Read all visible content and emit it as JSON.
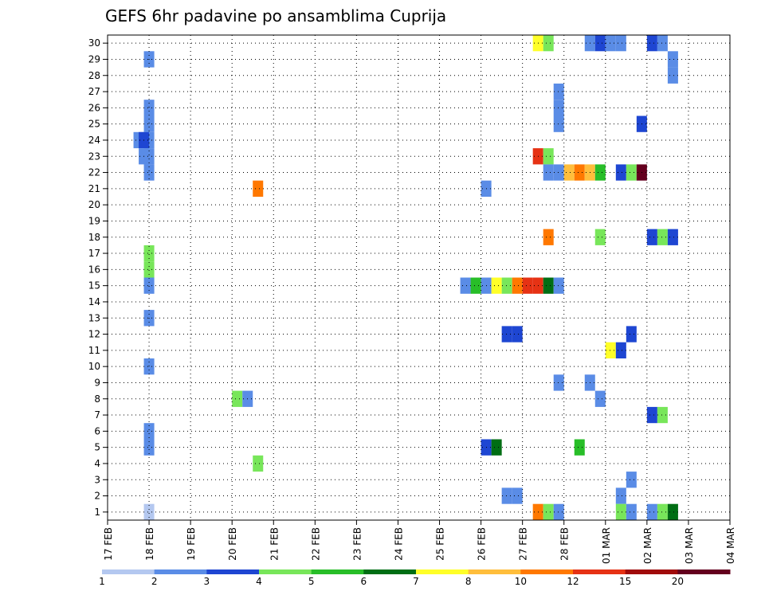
{
  "chart_data": {
    "type": "heatmap",
    "title": "GEFS 6hr padavine po ansamblima Cuprija",
    "xlabel": "",
    "ylabel": "",
    "y_ticks": [
      "1",
      "2",
      "3",
      "4",
      "5",
      "6",
      "7",
      "8",
      "9",
      "10",
      "11",
      "12",
      "13",
      "14",
      "15",
      "16",
      "17",
      "18",
      "19",
      "20",
      "21",
      "22",
      "23",
      "24",
      "25",
      "26",
      "27",
      "28",
      "29",
      "30"
    ],
    "x_ticks": [
      "17 FEB",
      "18 FEB",
      "19 FEB",
      "20 FEB",
      "21 FEB",
      "22 FEB",
      "23 FEB",
      "24 FEB",
      "25 FEB",
      "26 FEB",
      "27 FEB",
      "28 FEB",
      "01 MAR",
      "02 MAR",
      "03 MAR",
      "04 MAR"
    ],
    "x_range_days": [
      0,
      15
    ],
    "y_range": [
      0.5,
      30.5
    ],
    "grid": true,
    "legend_placement": "bottom",
    "levels": [
      "1",
      "2",
      "3",
      "4",
      "5",
      "6",
      "7",
      "8",
      "10",
      "12",
      "15",
      "20"
    ],
    "colors": [
      "#b4c8f0",
      "#5a8ce6",
      "#1e46d2",
      "#78e65a",
      "#28be28",
      "#006e14",
      "#ffff28",
      "#ffbe3c",
      "#ff7800",
      "#e63214",
      "#a00a0a",
      "#64001e"
    ],
    "cells": [
      [
        1.0,
        29,
        1
      ],
      [
        1.0,
        26,
        1
      ],
      [
        1.0,
        25,
        1
      ],
      [
        1.0,
        24,
        1
      ],
      [
        0.75,
        24,
        1
      ],
      [
        0.875,
        24,
        2
      ],
      [
        1.0,
        23,
        1
      ],
      [
        0.875,
        23,
        1
      ],
      [
        1.0,
        22,
        1
      ],
      [
        3.625,
        21,
        8
      ],
      [
        1.0,
        17,
        3
      ],
      [
        1.0,
        16,
        3
      ],
      [
        1.0,
        15,
        1
      ],
      [
        1.0,
        13,
        1
      ],
      [
        1.0,
        10,
        1
      ],
      [
        3.125,
        8,
        3
      ],
      [
        3.375,
        8,
        1
      ],
      [
        3.625,
        4,
        3
      ],
      [
        1.0,
        6,
        1
      ],
      [
        1.0,
        5,
        1
      ],
      [
        1.0,
        1,
        0
      ],
      [
        9.125,
        21,
        1
      ],
      [
        9.125,
        5,
        2
      ],
      [
        9.375,
        5,
        5
      ],
      [
        9.625,
        12,
        2
      ],
      [
        9.875,
        12,
        2
      ],
      [
        9.625,
        2,
        1
      ],
      [
        9.875,
        2,
        1
      ],
      [
        8.625,
        15,
        1
      ],
      [
        8.875,
        15,
        4
      ],
      [
        9.125,
        15,
        1
      ],
      [
        9.375,
        15,
        6
      ],
      [
        9.625,
        15,
        3
      ],
      [
        9.875,
        15,
        8
      ],
      [
        10.125,
        15,
        9
      ],
      [
        10.375,
        15,
        9
      ],
      [
        10.625,
        15,
        5
      ],
      [
        10.875,
        15,
        1
      ],
      [
        10.375,
        30,
        6
      ],
      [
        10.625,
        30,
        3
      ],
      [
        10.375,
        23,
        9
      ],
      [
        10.625,
        23,
        3
      ],
      [
        10.625,
        22,
        1
      ],
      [
        10.875,
        22,
        1
      ],
      [
        11.125,
        22,
        7
      ],
      [
        11.375,
        22,
        8
      ],
      [
        11.625,
        22,
        7
      ],
      [
        11.875,
        22,
        4
      ],
      [
        10.875,
        27,
        1
      ],
      [
        10.875,
        26,
        1
      ],
      [
        10.875,
        25,
        1
      ],
      [
        10.625,
        18,
        8
      ],
      [
        10.875,
        9,
        1
      ],
      [
        10.375,
        1,
        8
      ],
      [
        10.625,
        1,
        3
      ],
      [
        10.875,
        1,
        1
      ],
      [
        11.625,
        30,
        1
      ],
      [
        11.875,
        30,
        2
      ],
      [
        12.125,
        30,
        1
      ],
      [
        12.375,
        30,
        1
      ],
      [
        11.875,
        18,
        3
      ],
      [
        11.625,
        9,
        1
      ],
      [
        11.875,
        8,
        1
      ],
      [
        11.375,
        5,
        4
      ],
      [
        12.375,
        22,
        2
      ],
      [
        12.125,
        11,
        6
      ],
      [
        12.375,
        11,
        2
      ],
      [
        12.625,
        12,
        2
      ],
      [
        12.375,
        2,
        1
      ],
      [
        12.375,
        1,
        3
      ],
      [
        12.625,
        1,
        1
      ],
      [
        12.625,
        3,
        1
      ],
      [
        12.625,
        22,
        3
      ],
      [
        12.875,
        22,
        11
      ],
      [
        12.875,
        25,
        2
      ],
      [
        13.125,
        18,
        2
      ],
      [
        13.375,
        18,
        3
      ],
      [
        13.625,
        18,
        2
      ],
      [
        13.125,
        30,
        2
      ],
      [
        13.375,
        30,
        1
      ],
      [
        13.625,
        29,
        1
      ],
      [
        13.625,
        28,
        1
      ],
      [
        13.125,
        7,
        2
      ],
      [
        13.375,
        7,
        3
      ],
      [
        13.125,
        1,
        1
      ],
      [
        13.375,
        1,
        3
      ],
      [
        13.625,
        1,
        5
      ]
    ]
  }
}
